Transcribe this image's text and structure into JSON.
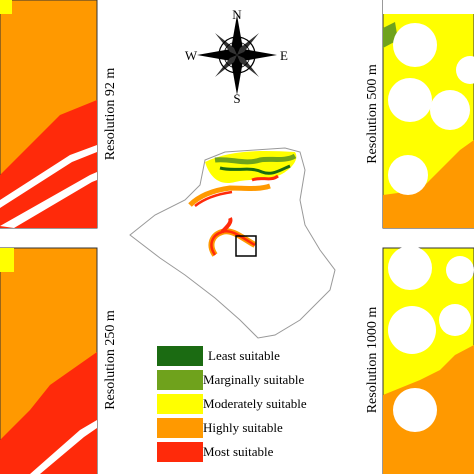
{
  "compass": {
    "north": "N",
    "south": "S",
    "east": "E",
    "west": "W"
  },
  "panels": [
    {
      "label": "Resolution 92 m"
    },
    {
      "label": "Resolution 250 m"
    },
    {
      "label": "Resolution 500 m"
    },
    {
      "label": "Resolution 1000 m"
    }
  ],
  "legend": [
    {
      "label": "Least suitable",
      "color": "#1b6b12"
    },
    {
      "label": "Marginally suitable",
      "color": "#6fa21c"
    },
    {
      "label": "Moderately suitable",
      "color": "#ffff00"
    },
    {
      "label": "Highly suitable",
      "color": "#ff9900"
    },
    {
      "label": "Most suitable",
      "color": "#ff2a0a"
    }
  ]
}
